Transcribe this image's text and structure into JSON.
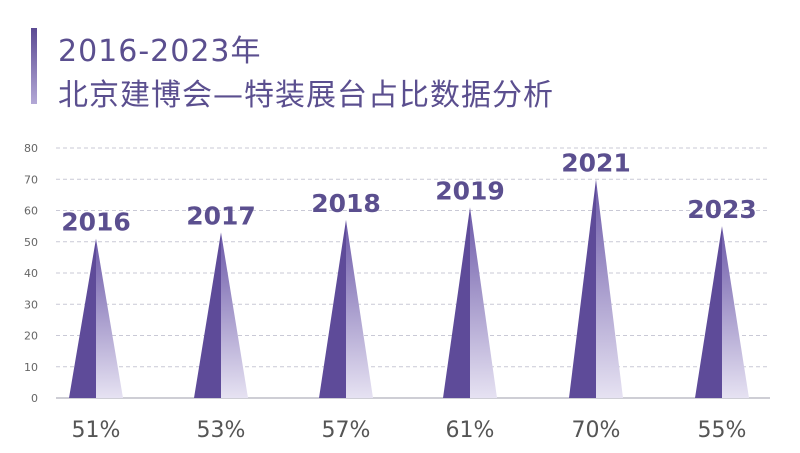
{
  "title": {
    "line1": "2016-2023年",
    "line2": "北京建博会—特装展台占比数据分析"
  },
  "chart_data": {
    "type": "bar",
    "categories": [
      "2016",
      "2017",
      "2018",
      "2019",
      "2021",
      "2023"
    ],
    "values": [
      51,
      53,
      57,
      61,
      70,
      55
    ],
    "value_labels": [
      "51%",
      "53%",
      "57%",
      "61%",
      "70%",
      "55%"
    ],
    "ylim": [
      0,
      80
    ],
    "yticks": [
      "0",
      "10",
      "20",
      "30",
      "40",
      "50",
      "60",
      "70",
      "80"
    ],
    "grid": true,
    "colors": {
      "dark": "#5e4b99",
      "light": "#d7d2ea",
      "grid": "#c9c9d6",
      "label": "#5b4f8f"
    }
  }
}
